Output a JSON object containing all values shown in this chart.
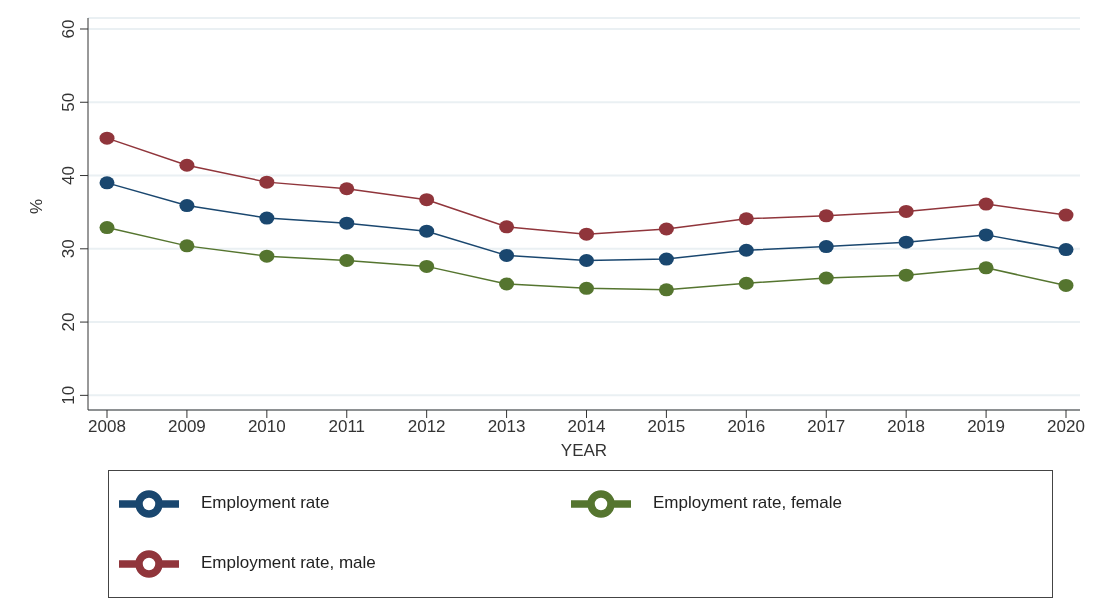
{
  "chart_data": {
    "type": "line",
    "xlabel": "YEAR",
    "ylabel": "%",
    "categories": [
      "2008",
      "2009",
      "2010",
      "2011",
      "2012",
      "2013",
      "2014",
      "2015",
      "2016",
      "2017",
      "2018",
      "2019",
      "2020"
    ],
    "series": [
      {
        "name": "Employment rate",
        "color": "#1a476f",
        "values": [
          39.0,
          35.9,
          34.2,
          33.5,
          32.4,
          29.1,
          28.4,
          28.6,
          29.8,
          30.3,
          30.9,
          31.9,
          29.9
        ]
      },
      {
        "name": "Employment rate, male",
        "color": "#90353b",
        "values": [
          45.1,
          41.4,
          39.1,
          38.2,
          36.7,
          33.0,
          32.0,
          32.7,
          34.1,
          34.5,
          35.1,
          36.1,
          34.6
        ]
      },
      {
        "name": "Employment rate, female",
        "color": "#55752f",
        "values": [
          32.9,
          30.4,
          29.0,
          28.4,
          27.6,
          25.2,
          24.6,
          24.4,
          25.3,
          26.0,
          26.4,
          27.4,
          25.0
        ]
      }
    ],
    "ylim": [
      8,
      61.5
    ],
    "yticks": [
      10,
      20,
      30,
      40,
      50,
      60
    ],
    "grid": "y",
    "legend": "bottom",
    "marker": "circle",
    "line_style": "solid"
  }
}
